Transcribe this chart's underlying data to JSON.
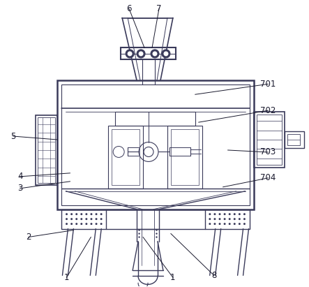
{
  "background_color": "#ffffff",
  "line_color": "#3a3a5a",
  "fig_width": 4.43,
  "fig_height": 4.11,
  "dpi": 100
}
